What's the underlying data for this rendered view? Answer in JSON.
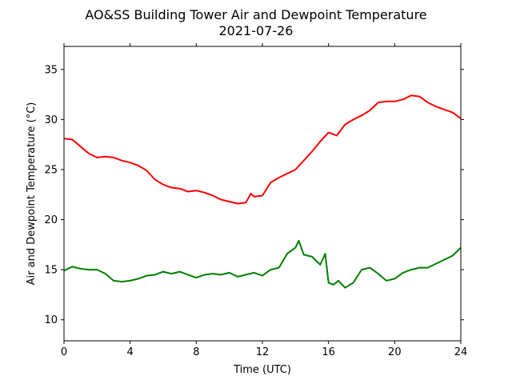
{
  "chart_data": {
    "type": "line",
    "title": "AO&SS Building Tower Air and Dewpoint Temperature",
    "subtitle": "2021-07-26",
    "xlabel": "Time (UTC)",
    "ylabel": "Air and Dewpoint Temperature (°C)",
    "xlim": [
      0,
      24
    ],
    "ylim": [
      7.9,
      37.3
    ],
    "xticks": [
      0,
      4,
      8,
      12,
      16,
      20,
      24
    ],
    "yticks": [
      10,
      15,
      20,
      25,
      30,
      35
    ],
    "grid": false,
    "legend": "none",
    "series": [
      {
        "color": "#ff0000",
        "x": [
          0,
          0.5,
          1,
          1.5,
          2,
          2.5,
          3,
          3.5,
          4,
          4.5,
          5,
          5.5,
          6,
          6.5,
          7,
          7.5,
          8,
          8.5,
          9,
          9.5,
          10,
          10.5,
          11,
          11.3,
          11.5,
          12,
          12.5,
          13,
          13.5,
          14,
          14.5,
          15,
          15.5,
          16,
          16.5,
          17,
          17.5,
          18,
          18.5,
          19,
          19.5,
          20,
          20.5,
          21,
          21.5,
          22,
          22.5,
          23,
          23.5,
          24
        ],
        "y": [
          28.1,
          28.0,
          27.3,
          26.6,
          26.2,
          26.3,
          26.2,
          25.9,
          25.7,
          25.4,
          24.9,
          24.0,
          23.5,
          23.2,
          23.1,
          22.8,
          22.9,
          22.7,
          22.4,
          22.0,
          21.8,
          21.6,
          21.7,
          22.6,
          22.3,
          22.4,
          23.7,
          24.2,
          24.6,
          25.0,
          25.9,
          26.8,
          27.8,
          28.7,
          28.4,
          29.5,
          30.0,
          30.4,
          30.9,
          31.7,
          31.8,
          31.8,
          32.0,
          32.4,
          32.3,
          31.7,
          31.3,
          31.0,
          30.7,
          30.1
        ]
      },
      {
        "color": "#008000",
        "x": [
          0,
          0.5,
          1,
          1.5,
          2,
          2.5,
          3,
          3.5,
          4,
          4.5,
          5,
          5.5,
          6,
          6.5,
          7,
          7.5,
          8,
          8.5,
          9,
          9.5,
          10,
          10.5,
          11,
          11.5,
          12,
          12.5,
          13,
          13.5,
          14,
          14.2,
          14.5,
          15,
          15.5,
          15.8,
          16,
          16.3,
          16.6,
          17,
          17.5,
          18,
          18.5,
          19,
          19.5,
          20,
          20.5,
          21,
          21.5,
          22,
          22.5,
          23,
          23.5,
          24
        ],
        "y": [
          14.9,
          15.3,
          15.1,
          15.0,
          15.0,
          14.6,
          13.9,
          13.8,
          13.9,
          14.1,
          14.4,
          14.5,
          14.8,
          14.6,
          14.8,
          14.5,
          14.2,
          14.5,
          14.6,
          14.5,
          14.7,
          14.3,
          14.5,
          14.7,
          14.4,
          15.0,
          15.2,
          16.6,
          17.2,
          17.9,
          16.5,
          16.3,
          15.5,
          16.6,
          13.7,
          13.5,
          13.9,
          13.2,
          13.7,
          15.0,
          15.2,
          14.6,
          13.9,
          14.1,
          14.7,
          15.0,
          15.2,
          15.2,
          15.6,
          16.0,
          16.4,
          17.2
        ]
      }
    ]
  }
}
